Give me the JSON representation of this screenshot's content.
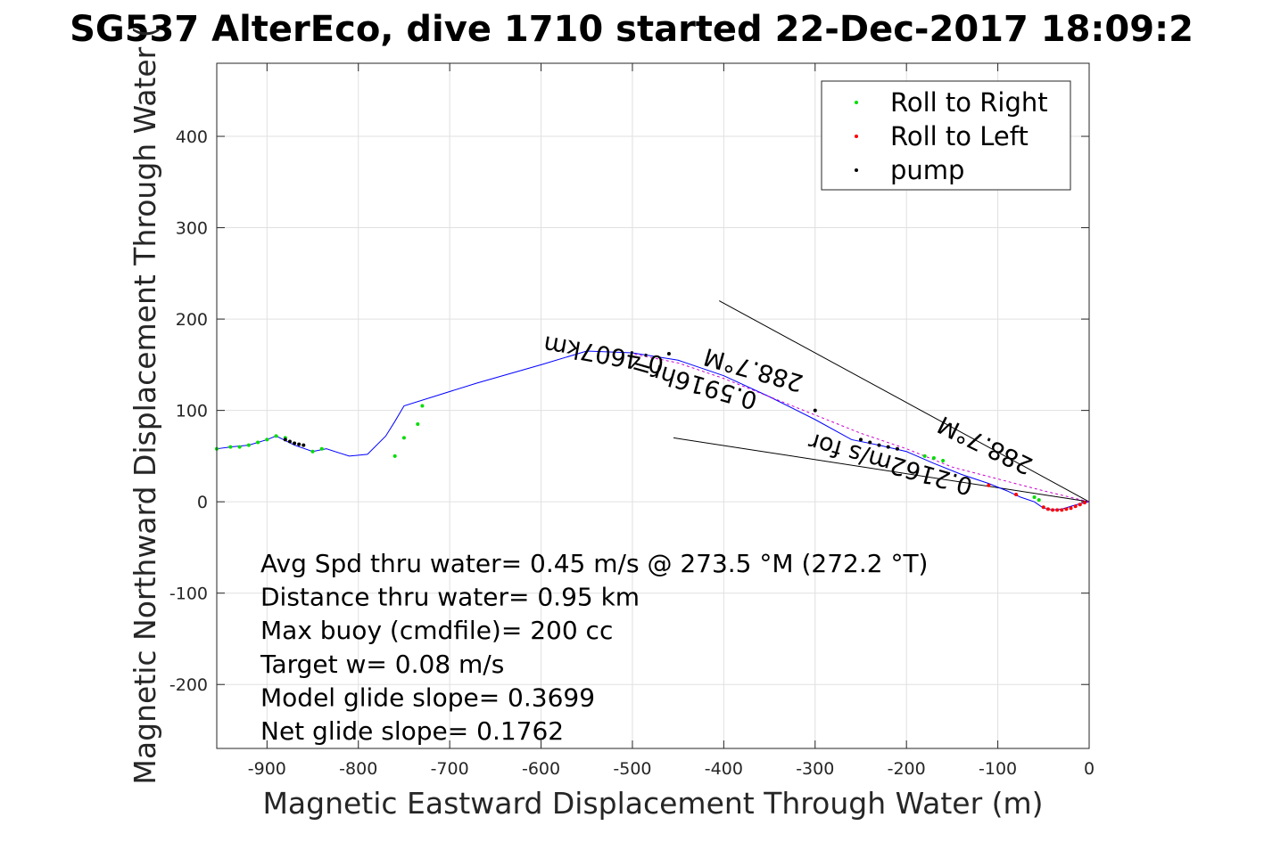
{
  "chart_data": {
    "type": "scatter",
    "title": "SG537 AlterEco, dive 1710 started 22-Dec-2017 18:09:2",
    "xlabel": "Magnetic Eastward Displacement Through Water (m)",
    "ylabel": "Magnetic Northward Displacement Through Water (",
    "xlim": [
      -955,
      0
    ],
    "ylim": [
      -270,
      480
    ],
    "xticks": [
      -900,
      -800,
      -700,
      -600,
      -500,
      -400,
      -300,
      -200,
      -100,
      0
    ],
    "xtick_labels": [
      "-900",
      "-800",
      "-700",
      "-600",
      "-500",
      "-400",
      "-300",
      "-200",
      "-100",
      "0"
    ],
    "yticks": [
      -200,
      -100,
      0,
      100,
      200,
      300,
      400
    ],
    "ytick_labels": [
      "-200",
      "-100",
      "0",
      "100",
      "200",
      "300",
      "400"
    ],
    "grid": true,
    "legend": {
      "placement": "top-right",
      "entries": [
        {
          "label": "Roll to Right",
          "color": "#00dd00"
        },
        {
          "label": "Roll to Left",
          "color": "#ff0000"
        },
        {
          "label": "pump",
          "color": "#000000"
        }
      ]
    },
    "series": [
      {
        "kind": "track",
        "color": "#0000ff",
        "x": [
          0,
          -10,
          -20,
          -30,
          -40,
          -50,
          -60,
          -75,
          -90,
          -110,
          -140,
          -170,
          -200,
          -230,
          -260,
          -300,
          -350,
          -400,
          -450,
          -500,
          -550,
          -600,
          -670,
          -750,
          -760,
          -770,
          -790,
          -810,
          -835,
          -850,
          -870,
          -890,
          -900,
          -920,
          -940,
          -955
        ],
        "y": [
          0,
          -2,
          -5,
          -8,
          -9,
          -7,
          0,
          5,
          12,
          20,
          30,
          42,
          55,
          62,
          68,
          90,
          115,
          138,
          155,
          163,
          165,
          150,
          130,
          105,
          88,
          72,
          52,
          50,
          58,
          55,
          62,
          72,
          68,
          62,
          60,
          58
        ]
      },
      {
        "kind": "dive-track",
        "color": "#cc00cc",
        "x": [
          0,
          -50,
          -100,
          -150,
          -200,
          -250,
          -300,
          -350,
          -400,
          -450,
          -500
        ],
        "y": [
          0,
          12,
          25,
          38,
          58,
          75,
          95,
          115,
          135,
          152,
          162
        ]
      },
      {
        "name": "Roll to Right",
        "color": "#00dd00",
        "x": [
          -955,
          -940,
          -930,
          -920,
          -910,
          -900,
          -890,
          -880,
          -850,
          -840,
          -760,
          -750,
          -735,
          -730,
          -180,
          -170,
          -160,
          -60,
          -55
        ],
        "y": [
          58,
          60,
          60,
          62,
          65,
          68,
          72,
          70,
          55,
          58,
          50,
          70,
          85,
          105,
          50,
          48,
          45,
          5,
          2
        ]
      },
      {
        "name": "Roll to Left",
        "color": "#ff0000",
        "x": [
          -5,
          -10,
          -15,
          -20,
          -25,
          -30,
          -35,
          -40,
          -45,
          -50,
          -80,
          -110
        ],
        "y": [
          -1,
          -3,
          -5,
          -7,
          -8,
          -9,
          -9,
          -9,
          -8,
          -6,
          8,
          18
        ]
      },
      {
        "name": "pump",
        "color": "#000000",
        "x": [
          -880,
          -875,
          -870,
          -865,
          -860,
          -250,
          -240,
          -230,
          -220,
          -210,
          -460,
          -300
        ],
        "y": [
          68,
          66,
          64,
          63,
          62,
          68,
          65,
          62,
          60,
          58,
          162,
          100
        ]
      }
    ],
    "current_lines": [
      {
        "x": [
          0,
          -405
        ],
        "y": [
          0,
          220
        ]
      },
      {
        "x": [
          0,
          -455
        ],
        "y": [
          0,
          70
        ]
      }
    ],
    "annotations": [
      {
        "text": "0.4607km",
        "x": -530,
        "y": 170,
        "rotation": 190
      },
      {
        "text": "288.7°M",
        "x": -365,
        "y": 153,
        "rotation": 196
      },
      {
        "text": "0.5916hr=",
        "x": -430,
        "y": 138,
        "rotation": 196
      },
      {
        "text": "0.2162m/s for",
        "x": -215,
        "y": 50,
        "rotation": 196
      },
      {
        "text": "288.7°M",
        "x": -110,
        "y": 70,
        "rotation": 206
      }
    ],
    "stats": [
      "Avg Spd thru water=  0.45 m/s @ 273.5 °M (272.2 °T)",
      "Distance thru water=  0.95 km",
      "Max buoy (cmdfile)= 200 cc",
      "Target w= 0.08 m/s",
      "Model glide slope= 0.3699",
      "Net glide slope= 0.1762"
    ]
  }
}
